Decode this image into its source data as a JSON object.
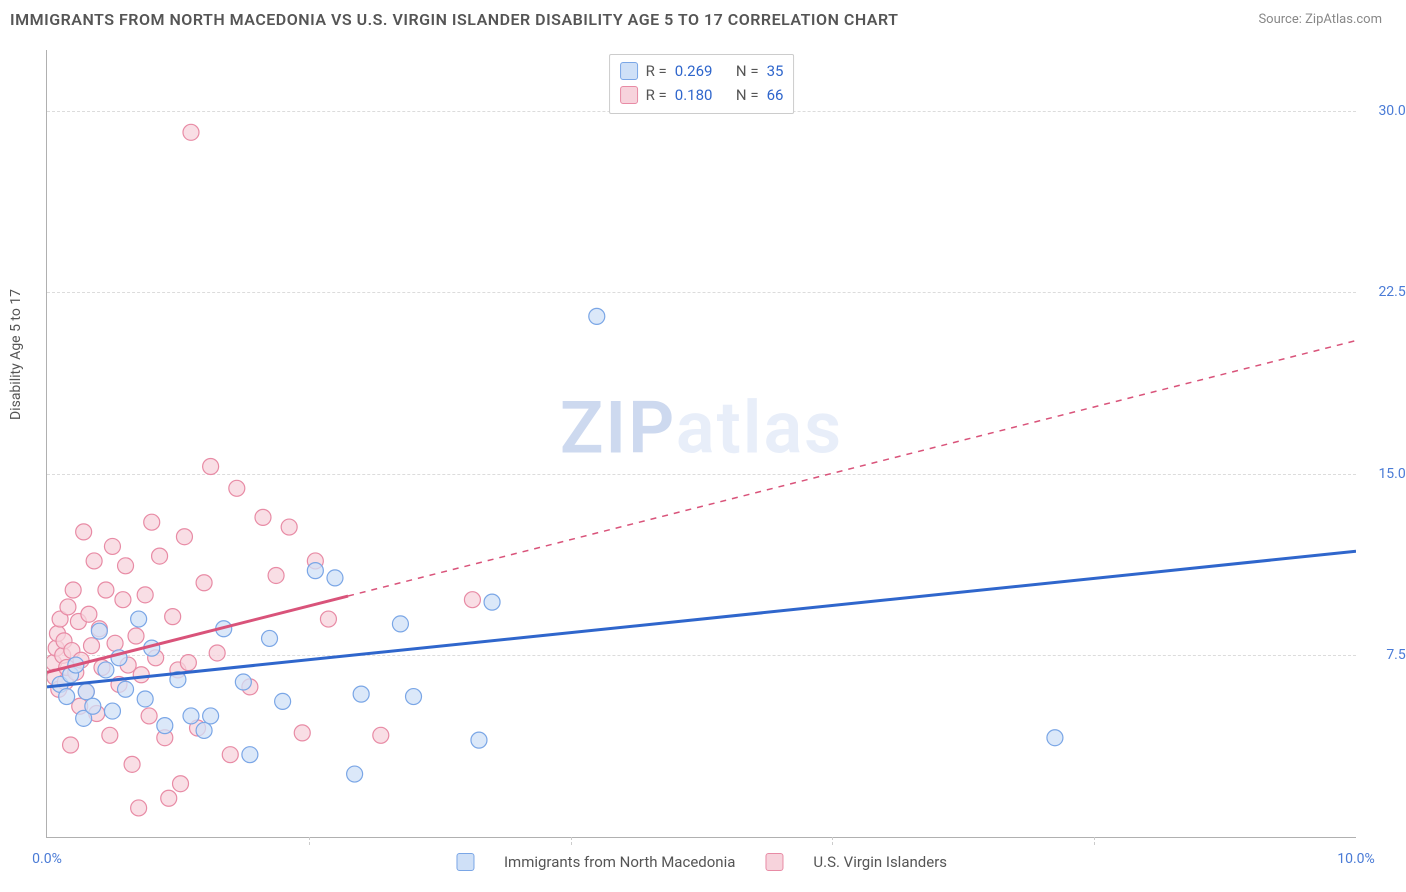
{
  "title": "IMMIGRANTS FROM NORTH MACEDONIA VS U.S. VIRGIN ISLANDER DISABILITY AGE 5 TO 17 CORRELATION CHART",
  "source_label": "Source:",
  "source_name": "ZipAtlas.com",
  "ylabel": "Disability Age 5 to 17",
  "watermark_a": "ZIP",
  "watermark_b": "atlas",
  "chart": {
    "type": "scatter",
    "background_color": "#ffffff",
    "grid_color": "#dcdcdc",
    "axis_color": "#b0b0b0",
    "tick_label_color": "#4a7bd6",
    "label_fontsize": 14,
    "title_fontsize": 16,
    "xlim": [
      0.0,
      10.0
    ],
    "ylim": [
      0.0,
      32.5
    ],
    "yticks": [
      7.5,
      15.0,
      22.5,
      30.0
    ],
    "ytick_labels": [
      "7.5%",
      "15.0%",
      "22.5%",
      "30.0%"
    ],
    "xticks": [
      0.0,
      10.0
    ],
    "xtick_labels": [
      "0.0%",
      "10.0%"
    ],
    "xtick_minor": [
      2.0,
      4.0,
      6.0,
      8.0
    ],
    "marker_radius": 8,
    "marker_stroke_width": 1.2,
    "trend_line_width": 3,
    "series": [
      {
        "id": "blue",
        "label": "Immigrants from North Macedonia",
        "R": "0.269",
        "N": "35",
        "fill": "#cfe0f7",
        "stroke": "#7aa6e6",
        "line_color": "#2f66cc",
        "trend": {
          "x1": 0.0,
          "y1": 6.2,
          "x2": 10.0,
          "y2": 11.8,
          "dash_from_x": null
        },
        "points": [
          [
            0.1,
            6.3
          ],
          [
            0.15,
            5.8
          ],
          [
            0.18,
            6.7
          ],
          [
            0.22,
            7.1
          ],
          [
            0.28,
            4.9
          ],
          [
            0.3,
            6.0
          ],
          [
            0.35,
            5.4
          ],
          [
            0.4,
            8.5
          ],
          [
            0.45,
            6.9
          ],
          [
            0.5,
            5.2
          ],
          [
            0.55,
            7.4
          ],
          [
            0.6,
            6.1
          ],
          [
            0.7,
            9.0
          ],
          [
            0.75,
            5.7
          ],
          [
            0.8,
            7.8
          ],
          [
            0.9,
            4.6
          ],
          [
            1.0,
            6.5
          ],
          [
            1.1,
            5.0
          ],
          [
            1.2,
            4.4
          ],
          [
            1.25,
            5.0
          ],
          [
            1.35,
            8.6
          ],
          [
            1.5,
            6.4
          ],
          [
            1.55,
            3.4
          ],
          [
            1.7,
            8.2
          ],
          [
            1.8,
            5.6
          ],
          [
            2.05,
            11.0
          ],
          [
            2.2,
            10.7
          ],
          [
            2.35,
            2.6
          ],
          [
            2.4,
            5.9
          ],
          [
            2.7,
            8.8
          ],
          [
            2.8,
            5.8
          ],
          [
            3.3,
            4.0
          ],
          [
            3.4,
            9.7
          ],
          [
            4.2,
            21.5
          ],
          [
            7.7,
            4.1
          ]
        ]
      },
      {
        "id": "pink",
        "label": "U.S. Virgin Islanders",
        "R": "0.180",
        "N": "66",
        "fill": "#f7d3dc",
        "stroke": "#e88ba5",
        "line_color": "#d9537a",
        "trend": {
          "x1": 0.0,
          "y1": 6.8,
          "x2": 10.0,
          "y2": 20.5,
          "dash_from_x": 2.3
        },
        "points": [
          [
            0.05,
            7.2
          ],
          [
            0.06,
            6.6
          ],
          [
            0.07,
            7.8
          ],
          [
            0.08,
            8.4
          ],
          [
            0.09,
            6.1
          ],
          [
            0.1,
            9.0
          ],
          [
            0.12,
            7.5
          ],
          [
            0.13,
            8.1
          ],
          [
            0.14,
            6.4
          ],
          [
            0.15,
            7.0
          ],
          [
            0.16,
            9.5
          ],
          [
            0.18,
            3.8
          ],
          [
            0.19,
            7.7
          ],
          [
            0.2,
            10.2
          ],
          [
            0.22,
            6.8
          ],
          [
            0.24,
            8.9
          ],
          [
            0.25,
            5.4
          ],
          [
            0.26,
            7.3
          ],
          [
            0.28,
            12.6
          ],
          [
            0.3,
            6.0
          ],
          [
            0.32,
            9.2
          ],
          [
            0.34,
            7.9
          ],
          [
            0.36,
            11.4
          ],
          [
            0.38,
            5.1
          ],
          [
            0.4,
            8.6
          ],
          [
            0.42,
            7.0
          ],
          [
            0.45,
            10.2
          ],
          [
            0.48,
            4.2
          ],
          [
            0.5,
            12.0
          ],
          [
            0.52,
            8.0
          ],
          [
            0.55,
            6.3
          ],
          [
            0.58,
            9.8
          ],
          [
            0.6,
            11.2
          ],
          [
            0.62,
            7.1
          ],
          [
            0.65,
            3.0
          ],
          [
            0.68,
            8.3
          ],
          [
            0.7,
            1.2
          ],
          [
            0.72,
            6.7
          ],
          [
            0.75,
            10.0
          ],
          [
            0.78,
            5.0
          ],
          [
            0.8,
            13.0
          ],
          [
            0.83,
            7.4
          ],
          [
            0.86,
            11.6
          ],
          [
            0.9,
            4.1
          ],
          [
            0.93,
            1.6
          ],
          [
            0.96,
            9.1
          ],
          [
            1.0,
            6.9
          ],
          [
            1.02,
            2.2
          ],
          [
            1.05,
            12.4
          ],
          [
            1.08,
            7.2
          ],
          [
            1.1,
            29.1
          ],
          [
            1.15,
            4.5
          ],
          [
            1.2,
            10.5
          ],
          [
            1.25,
            15.3
          ],
          [
            1.3,
            7.6
          ],
          [
            1.4,
            3.4
          ],
          [
            1.45,
            14.4
          ],
          [
            1.55,
            6.2
          ],
          [
            1.65,
            13.2
          ],
          [
            1.75,
            10.8
          ],
          [
            1.85,
            12.8
          ],
          [
            1.95,
            4.3
          ],
          [
            2.05,
            11.4
          ],
          [
            2.15,
            9.0
          ],
          [
            2.55,
            4.2
          ],
          [
            3.25,
            9.8
          ]
        ]
      }
    ],
    "legend_top": {
      "rows": [
        {
          "swatch": "#cfe0f7",
          "swatch_border": "#7aa6e6",
          "r_label": "R =",
          "r_val": "0.269",
          "n_label": "N =",
          "n_val": "35"
        },
        {
          "swatch": "#f7d3dc",
          "swatch_border": "#e88ba5",
          "r_label": "R =",
          "r_val": "0.180",
          "n_label": "N =",
          "n_val": "66"
        }
      ]
    },
    "legend_bottom": [
      {
        "swatch": "#cfe0f7",
        "swatch_border": "#7aa6e6",
        "label": "Immigrants from North Macedonia"
      },
      {
        "swatch": "#f7d3dc",
        "swatch_border": "#e88ba5",
        "label": "U.S. Virgin Islanders"
      }
    ]
  }
}
